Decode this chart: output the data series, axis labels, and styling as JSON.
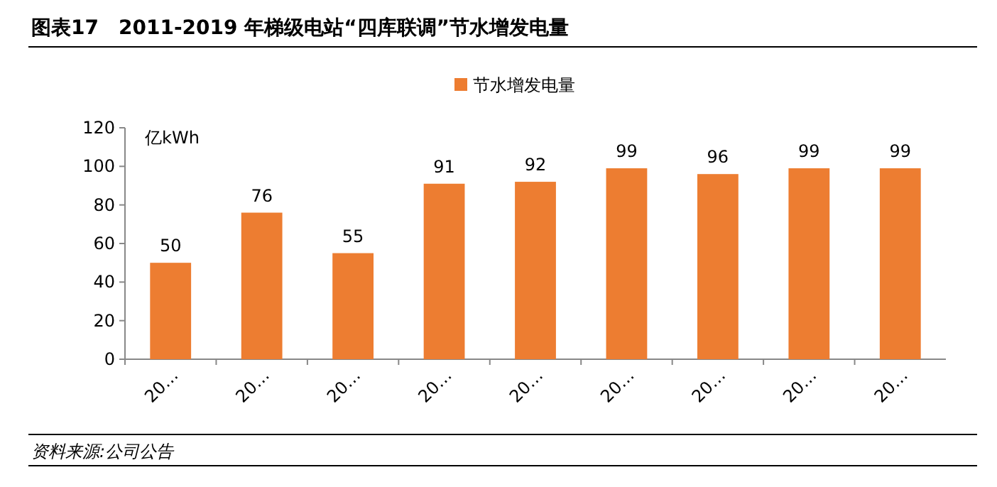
{
  "chart_data": {
    "type": "bar",
    "title": "图表17　2011-2019 年梯级电站“四库联调”节水增发电量",
    "ylabel": "亿kWh",
    "categories": [
      "20…",
      "20…",
      "20…",
      "20…",
      "20…",
      "20…",
      "20…",
      "20…",
      "20…"
    ],
    "series": [
      {
        "name": "节水增发电量",
        "color": "#ed7d31",
        "values": [
          50,
          76,
          55,
          91,
          92,
          99,
          96,
          99,
          99
        ]
      }
    ],
    "ylim": [
      0,
      120
    ],
    "yticks": [
      0,
      20,
      40,
      60,
      80,
      100,
      120
    ],
    "data_labels": true,
    "legend": "top",
    "annotations": [
      "资料来源:公司公告"
    ]
  }
}
